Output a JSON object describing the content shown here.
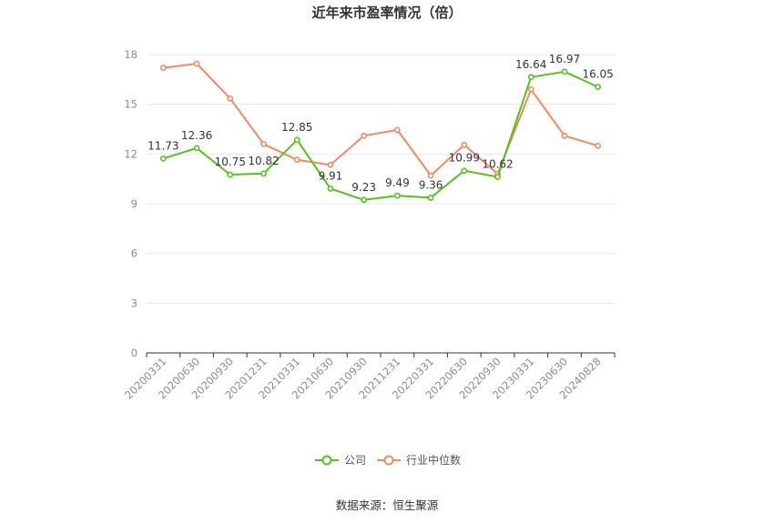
{
  "chart_data": {
    "type": "line",
    "title": "近年来市盈率情况（倍）",
    "categories": [
      "20200331",
      "20200630",
      "20200930",
      "20201231",
      "20210331",
      "20210630",
      "20210930",
      "20211231",
      "20220331",
      "20220630",
      "20220930",
      "20230331",
      "20230630",
      "20240828"
    ],
    "series": [
      {
        "name": "公司",
        "color": "#52c41a",
        "values": [
          11.73,
          12.36,
          10.75,
          10.82,
          12.85,
          9.91,
          9.23,
          9.49,
          9.36,
          10.99,
          10.62,
          16.64,
          16.97,
          16.05
        ],
        "labels": [
          "11.73",
          "12.36",
          "10.75",
          "10.82",
          "12.85",
          "9.91",
          "9.23",
          "9.49",
          "9.36",
          "10.99",
          "10.62",
          "16.64",
          "16.97",
          "16.05"
        ]
      },
      {
        "name": "行业中位数",
        "color": "#f4895f",
        "values": [
          17.2,
          17.45,
          15.35,
          12.6,
          11.65,
          11.35,
          13.1,
          13.45,
          10.7,
          12.55,
          10.8,
          15.9,
          13.1,
          12.5
        ]
      }
    ],
    "ylim": [
      0,
      18
    ],
    "yticks": [
      "0",
      "3",
      "6",
      "9",
      "12",
      "15",
      "18"
    ],
    "grid": true,
    "legend_position": "bottom",
    "source": "数据来源：恒生聚源"
  }
}
